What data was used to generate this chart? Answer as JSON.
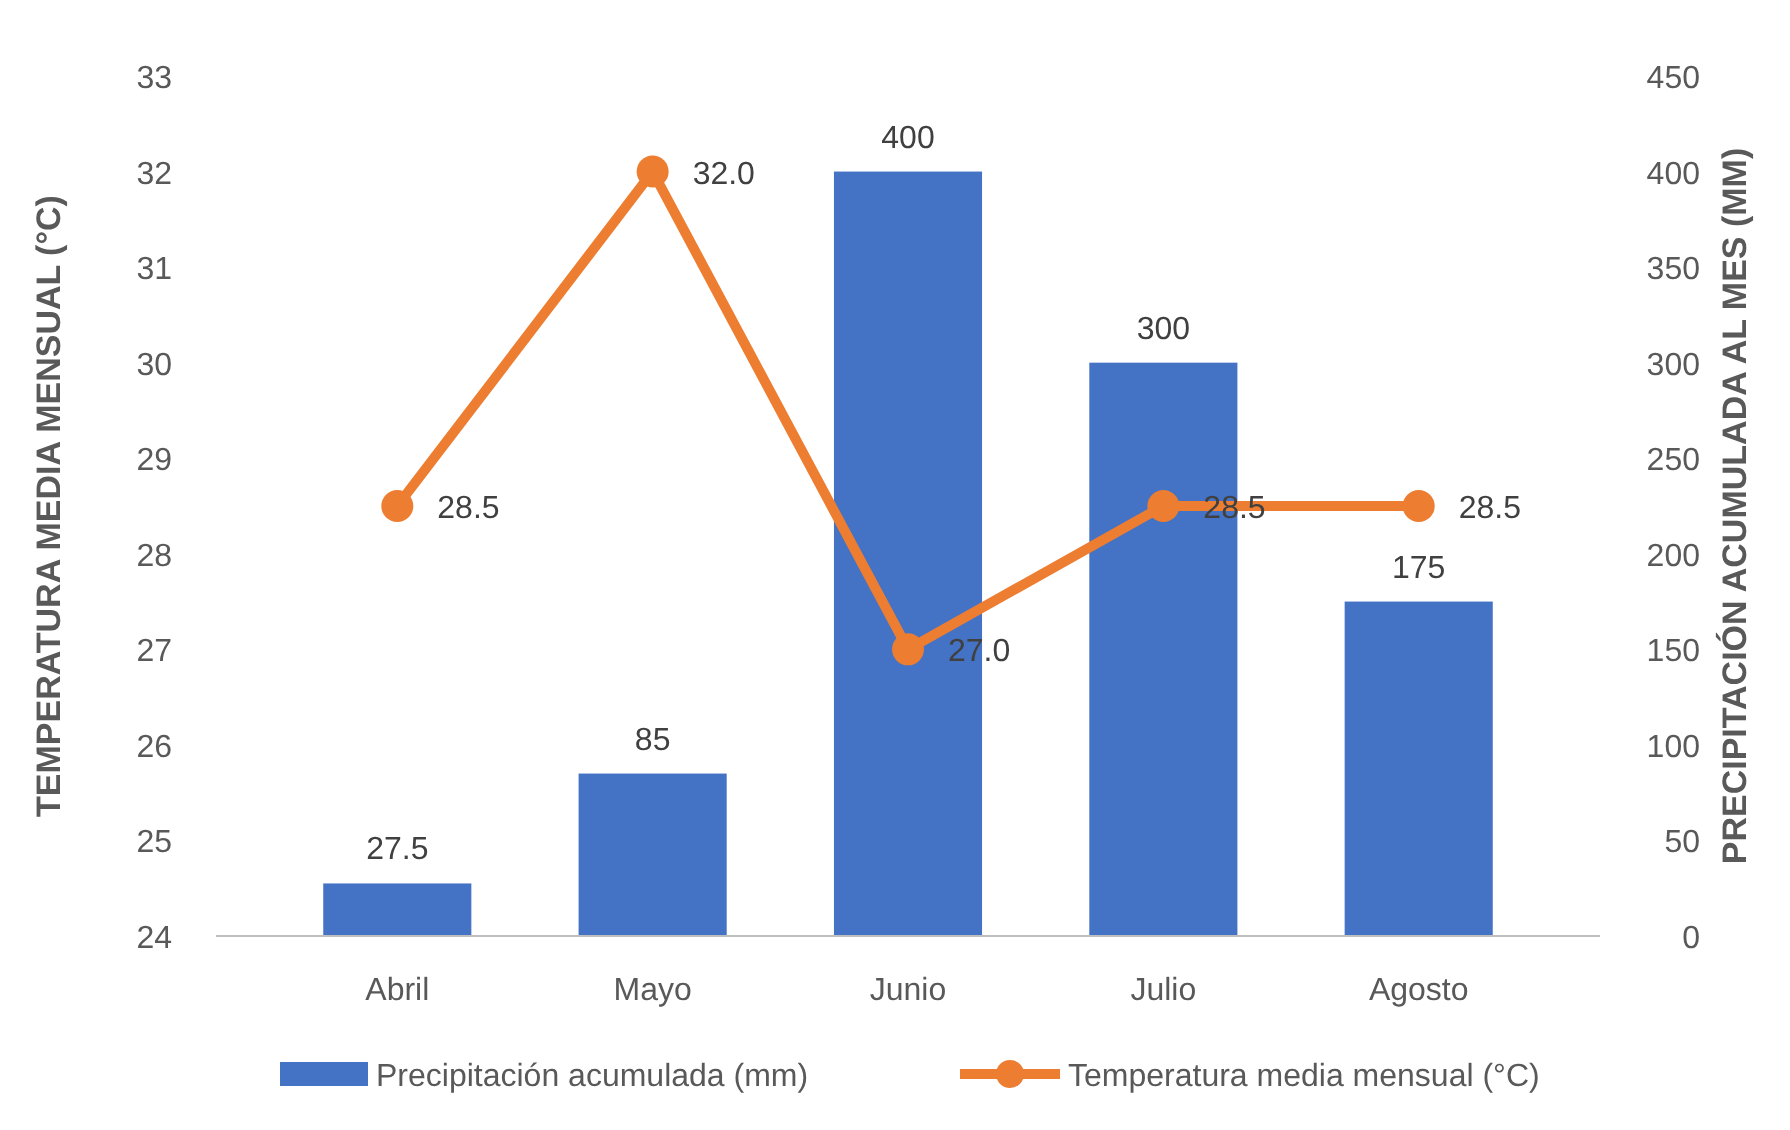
{
  "chart_data": {
    "type": "bar",
    "categories": [
      "Abril",
      "Mayo",
      "Junio",
      "Julio",
      "Agosto"
    ],
    "ylabel": "TEMPERATURA MEDIA MENSUAL (°C)",
    "y2label": "PRECIPITACIÓN ACUMULADA AL MES  (MM)",
    "ylim": [
      24,
      33
    ],
    "yticks": [
      24,
      25,
      26,
      27,
      28,
      29,
      30,
      31,
      32,
      33
    ],
    "y2lim": [
      0,
      450
    ],
    "y2ticks": [
      0,
      50,
      100,
      150,
      200,
      250,
      300,
      350,
      400,
      450
    ],
    "legend": "bottom",
    "grid": false,
    "series": [
      {
        "name": "Precipitación acumulada (mm)",
        "axis": "y2",
        "color": "#4472c4",
        "values": [
          27.5,
          85,
          400,
          300,
          175
        ],
        "value_labels": [
          "27.5",
          "85",
          "400",
          "300",
          "175"
        ]
      },
      {
        "name": "Temperatura media mensual (°C)",
        "type": "line",
        "axis": "y",
        "color": "#ed7d31",
        "marker": "circle",
        "values": [
          28.5,
          32.0,
          27.0,
          28.5,
          28.5
        ],
        "value_labels": [
          "28.5",
          "32.0",
          "27.0",
          "28.5",
          "28.5"
        ]
      }
    ]
  }
}
